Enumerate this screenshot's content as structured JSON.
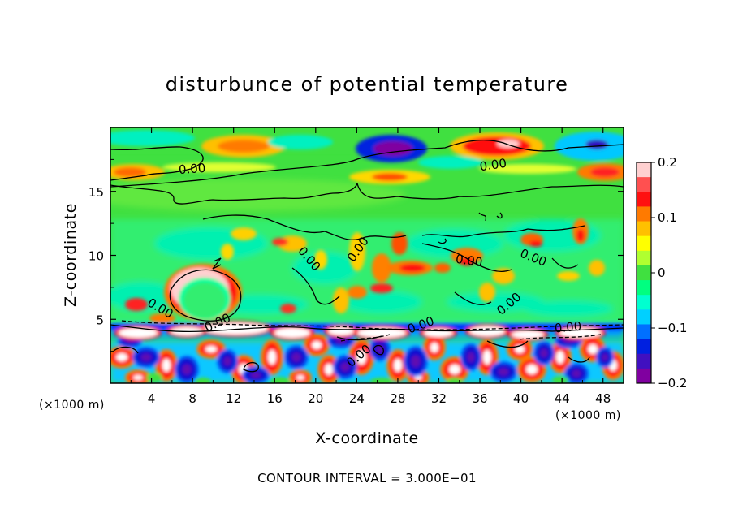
{
  "chart_data": {
    "type": "heatmap",
    "title": "disturbunce of potential temperature",
    "xlabel": "X-coordinate",
    "ylabel": "Z-coordinate",
    "x_unit": "(×1000 m)",
    "y_unit": "(×1000 m)",
    "xlim": [
      0,
      50
    ],
    "ylim": [
      0,
      20
    ],
    "x_ticks": [
      4,
      8,
      12,
      16,
      20,
      24,
      28,
      32,
      36,
      40,
      44,
      48
    ],
    "y_ticks": [
      5,
      10,
      15
    ],
    "colorbar": {
      "range": [
        -0.2,
        0.2
      ],
      "ticks": [
        "0.2",
        "0.1",
        "0",
        "−0.1",
        "−0.2"
      ],
      "tick_values": [
        0.2,
        0.1,
        0,
        -0.1,
        -0.2
      ],
      "colors": [
        "#ffd0d0",
        "#ff5050",
        "#ff1010",
        "#ff7a00",
        "#ffc000",
        "#ffff00",
        "#b0ff30",
        "#40e040",
        "#00ff80",
        "#00ffd0",
        "#00d0ff",
        "#0070ff",
        "#0020e0",
        "#4010c0",
        "#8000a0"
      ]
    },
    "contour_interval": "CONTOUR INTERVAL = 3.000E−01",
    "contour_labels": [
      "0.00",
      "0.00",
      "0.00",
      "0.00",
      "0.00",
      "0.00",
      "0.00",
      "0.00",
      "0.00",
      "0.00",
      "0.00",
      "0.00"
    ],
    "features": [
      {
        "x": 12,
        "z": 17.4,
        "value": 0.14
      },
      {
        "x": 3,
        "z": 16.6,
        "value": 0.12
      },
      {
        "x": 27.5,
        "z": 18.2,
        "value": -0.2
      },
      {
        "x": 38.5,
        "z": 18.3,
        "value": 0.2
      },
      {
        "x": 45.5,
        "z": 18.0,
        "value": -0.13
      },
      {
        "x": 49,
        "z": 16.5,
        "value": 0.1
      },
      {
        "x": 27,
        "z": 16.0,
        "value": 0.12
      },
      {
        "x": 9,
        "z": 7.0,
        "value": 0.2
      },
      {
        "x": 18,
        "z": 10.6,
        "value": 0.12
      },
      {
        "x": 30,
        "z": 9.6,
        "value": 0.14
      },
      {
        "x": 35,
        "z": 9.6,
        "value": 0.14
      },
      {
        "x": 45.5,
        "z": 11.5,
        "value": 0.14
      },
      {
        "x": 25,
        "z": 7.5,
        "value": 0.14
      }
    ]
  }
}
